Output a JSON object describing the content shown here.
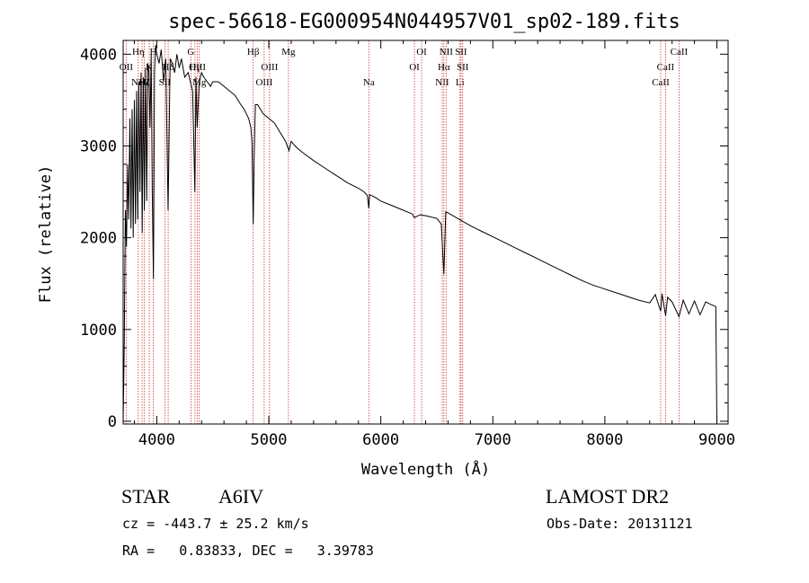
{
  "header": {
    "title": "spec-56618-EG000954N044957V01_sp02-189.fits"
  },
  "info": {
    "object_class": "STAR",
    "object_subclass": "A6IV",
    "survey": "LAMOST DR2",
    "cz_text": "cz = -443.7 ± 25.2 km/s",
    "obs_date_text": "Obs-Date: 20131121",
    "radec_text": "RA =   0.83833, DEC =   3.39783"
  },
  "chart_data": {
    "type": "line",
    "title": "spec-56618-EG000954N044957V01_sp02-189.fits",
    "xlabel": "Wavelength (Å)",
    "ylabel": "Flux (relative)",
    "xlim": [
      3700,
      9100
    ],
    "ylim": [
      -30,
      4150
    ],
    "x_ticks": [
      4000,
      5000,
      6000,
      7000,
      8000,
      9000
    ],
    "y_ticks": [
      0,
      1000,
      2000,
      3000,
      4000
    ],
    "grid": false,
    "line_color": "#000000",
    "marker_color": "#cc3333",
    "series": [
      {
        "x": [
          3700,
          3710,
          3720,
          3730,
          3740,
          3750,
          3760,
          3770,
          3780,
          3790,
          3800,
          3810,
          3820,
          3830,
          3840,
          3850,
          3860,
          3870,
          3880,
          3889,
          3900,
          3910,
          3920,
          3930,
          3940,
          3950,
          3960,
          3970,
          3980,
          3990,
          4000,
          4020,
          4040,
          4060,
          4080,
          4101,
          4120,
          4140,
          4160,
          4180,
          4200,
          4220,
          4250,
          4280,
          4300,
          4320,
          4340,
          4350,
          4360,
          4380,
          4400,
          4420,
          4450,
          4480,
          4500,
          4550,
          4600,
          4650,
          4700,
          4750,
          4780,
          4800,
          4820,
          4840,
          4850,
          4861,
          4870,
          4880,
          4900,
          4950,
          5000,
          5050,
          5100,
          5150,
          5180,
          5200,
          5250,
          5300,
          5400,
          5500,
          5600,
          5700,
          5800,
          5850,
          5880,
          5893,
          5900,
          5950,
          6000,
          6100,
          6200,
          6280,
          6300,
          6350,
          6400,
          6500,
          6540,
          6563,
          6580,
          6600,
          6700,
          6800,
          6900,
          7000,
          7100,
          7200,
          7300,
          7400,
          7500,
          7600,
          7700,
          7800,
          7900,
          8000,
          8100,
          8200,
          8300,
          8400,
          8450,
          8498,
          8510,
          8542,
          8560,
          8600,
          8662,
          8700,
          8750,
          8800,
          8850,
          8900,
          8950,
          8990,
          9000
        ],
        "values": [
          0,
          800,
          2300,
          1900,
          2800,
          2200,
          3300,
          2100,
          3400,
          2000,
          3500,
          2150,
          3600,
          2200,
          3700,
          2500,
          3800,
          2050,
          3750,
          2300,
          3850,
          2400,
          3900,
          3800,
          3200,
          4000,
          2500,
          1550,
          3800,
          4100,
          4000,
          3900,
          4050,
          3700,
          3950,
          2300,
          3950,
          3900,
          3800,
          4000,
          3850,
          3950,
          3750,
          3800,
          3700,
          3600,
          2500,
          3750,
          3200,
          3700,
          3800,
          3750,
          3700,
          3650,
          3700,
          3700,
          3650,
          3600,
          3550,
          3450,
          3400,
          3350,
          3300,
          3200,
          3050,
          2150,
          2900,
          3450,
          3450,
          3350,
          3300,
          3250,
          3150,
          3050,
          2950,
          3050,
          2980,
          2930,
          2840,
          2760,
          2680,
          2600,
          2540,
          2500,
          2460,
          2320,
          2470,
          2440,
          2400,
          2350,
          2300,
          2260,
          2220,
          2250,
          2240,
          2210,
          2150,
          1600,
          2280,
          2270,
          2200,
          2130,
          2070,
          2010,
          1950,
          1890,
          1830,
          1770,
          1710,
          1650,
          1590,
          1530,
          1480,
          1440,
          1400,
          1360,
          1320,
          1290,
          1380,
          1200,
          1390,
          1150,
          1350,
          1300,
          1140,
          1320,
          1170,
          1310,
          1160,
          1300,
          1270,
          1250,
          0
        ]
      }
    ],
    "line_markers": [
      {
        "wave": 3727,
        "label": "OII",
        "row": 1
      },
      {
        "wave": 3835,
        "label": "Hη",
        "row": 0
      },
      {
        "wave": 3869,
        "label": "NeIII",
        "row": 2
      },
      {
        "wave": 3889,
        "label": "Hζ",
        "row": 2
      },
      {
        "wave": 3933,
        "label": "K",
        "row": 1
      },
      {
        "wave": 3969,
        "label": "H",
        "row": 0
      },
      {
        "wave": 4072,
        "label": "SII",
        "row": 2
      },
      {
        "wave": 4102,
        "label": "Hδ",
        "row": 1
      },
      {
        "wave": 4305,
        "label": "G",
        "row": 0
      },
      {
        "wave": 4341,
        "label": "Hγ",
        "row": 1
      },
      {
        "wave": 4363,
        "label": "OIII",
        "row": 1
      },
      {
        "wave": 4380,
        "label": "Mg",
        "row": 2
      },
      {
        "wave": 4861,
        "label": "Hβ",
        "row": 0
      },
      {
        "wave": 4959,
        "label": "OIII",
        "row": 2
      },
      {
        "wave": 5007,
        "label": "OIII",
        "row": 1
      },
      {
        "wave": 5175,
        "label": "Mg",
        "row": 0
      },
      {
        "wave": 5893,
        "label": "Na",
        "row": 2
      },
      {
        "wave": 6300,
        "label": "OI",
        "row": 1
      },
      {
        "wave": 6364,
        "label": "OI",
        "row": 0
      },
      {
        "wave": 6548,
        "label": "NII",
        "row": 2
      },
      {
        "wave": 6563,
        "label": "Hα",
        "row": 1
      },
      {
        "wave": 6583,
        "label": "NII",
        "row": 0
      },
      {
        "wave": 6707,
        "label": "Li",
        "row": 2
      },
      {
        "wave": 6716,
        "label": "SII",
        "row": 0
      },
      {
        "wave": 6731,
        "label": "SII",
        "row": 1
      },
      {
        "wave": 8498,
        "label": "CaII",
        "row": 2
      },
      {
        "wave": 8542,
        "label": "CaII",
        "row": 1
      },
      {
        "wave": 8662,
        "label": "CaII",
        "row": 0
      }
    ]
  }
}
